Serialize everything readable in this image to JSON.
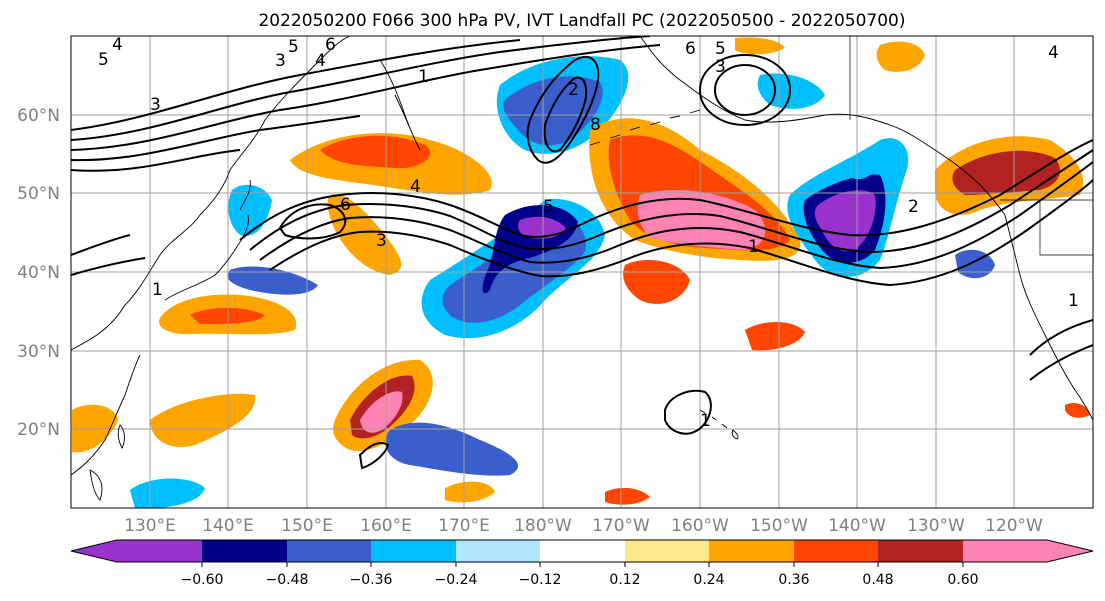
{
  "title": "2022050200 F066 300 hPa PV, IVT Landfall PC (2022050500 - 2022050700)",
  "map": {
    "region": "North Pacific",
    "projection": "PlateCarree",
    "lat_range": [
      10,
      70
    ],
    "lon_range": [
      120,
      250
    ],
    "lat_labels": [
      "60°N",
      "50°N",
      "40°N",
      "30°N",
      "20°N"
    ],
    "lon_labels": [
      "130°E",
      "140°E",
      "150°E",
      "160°E",
      "170°E",
      "180°W",
      "170°W",
      "160°W",
      "150°W",
      "140°W",
      "130°W",
      "120°W"
    ],
    "contour_field": "300 hPa PV",
    "contour_labels": [
      "4",
      "5",
      "6",
      "5",
      "3",
      "4",
      "8",
      "6",
      "5",
      "3",
      "3",
      "1",
      "2",
      "1",
      "4",
      "6",
      "3",
      "5",
      "4",
      "1",
      "1",
      "2",
      "1"
    ]
  },
  "colorbar": {
    "ticks": [
      "−0.60",
      "−0.48",
      "−0.36",
      "−0.24",
      "−0.12",
      "0.12",
      "0.24",
      "0.36",
      "0.48",
      "0.60"
    ],
    "colors": [
      "#9932cc",
      "#00008b",
      "#3a5fcd",
      "#00bfff",
      "#b2e5ff",
      "#ffffff",
      "#ffe88a",
      "#ffa500",
      "#ff4500",
      "#b22222",
      "#ff83b5"
    ],
    "extend": "both"
  }
}
